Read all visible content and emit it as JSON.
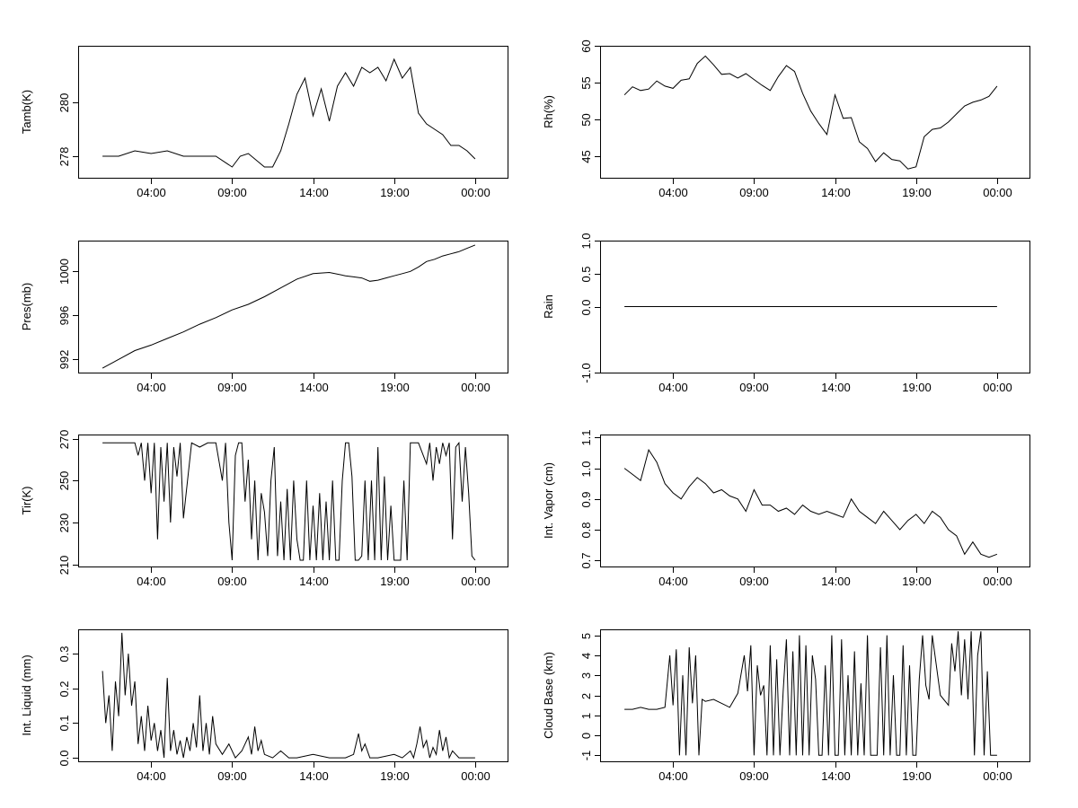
{
  "chart_data": [
    {
      "type": "line",
      "ylabel": "Tamb(K)",
      "xlim": [
        -1.5,
        25.0
      ],
      "ylim": [
        277.2,
        282.1
      ],
      "yticks": [
        278,
        280
      ],
      "xticks": [
        3,
        8,
        13,
        18,
        23
      ],
      "xtick_labels": [
        "04:00",
        "09:00",
        "14:00",
        "19:00",
        "00:00"
      ],
      "series": [
        {
          "x": [
            0,
            1,
            2,
            3,
            4,
            5,
            6,
            7,
            8,
            8.5,
            9,
            10,
            10.5,
            11,
            11.5,
            12,
            12.5,
            13,
            13.5,
            14,
            14.5,
            15,
            15.5,
            16,
            16.5,
            17,
            17.5,
            18,
            18.5,
            19,
            19.5,
            20,
            20.5,
            21,
            21.5,
            22,
            22.5,
            23
          ],
          "y": [
            278.0,
            278.0,
            278.2,
            278.1,
            278.2,
            278.0,
            278.0,
            278.0,
            277.6,
            278.0,
            278.1,
            277.6,
            277.6,
            278.2,
            279.2,
            280.3,
            280.9,
            279.5,
            280.5,
            279.3,
            280.6,
            281.1,
            280.6,
            281.3,
            281.1,
            281.3,
            280.8,
            281.6,
            280.9,
            281.3,
            279.6,
            279.2,
            279.0,
            278.8,
            278.4,
            278.4,
            278.2,
            277.9
          ]
        }
      ]
    },
    {
      "type": "line",
      "ylabel": "Rh(%)",
      "xlim": [
        -1.5,
        25.0
      ],
      "ylim": [
        42,
        60
      ],
      "yticks": [
        45,
        50,
        55,
        60
      ],
      "xticks": [
        3,
        8,
        13,
        18,
        23
      ],
      "xtick_labels": [
        "04:00",
        "09:00",
        "14:00",
        "19:00",
        "00:00"
      ],
      "series": [
        {
          "x": [
            0,
            0.5,
            1,
            1.5,
            2,
            2.5,
            3,
            3.5,
            4,
            4.5,
            5,
            5.5,
            6,
            6.5,
            7,
            7.5,
            8,
            8.5,
            9,
            9.5,
            10,
            10.5,
            11,
            11.5,
            12,
            12.5,
            13,
            13.5,
            14,
            14.5,
            15,
            15.5,
            16,
            16.5,
            17,
            17.5,
            18,
            18.5,
            19,
            19.5,
            20,
            20.5,
            21,
            21.5,
            22,
            22.5,
            23
          ],
          "y": [
            53.3,
            54.4,
            53.9,
            54.1,
            55.2,
            54.5,
            54.2,
            55.3,
            55.5,
            57.6,
            58.6,
            57.4,
            56.1,
            56.2,
            55.6,
            56.2,
            55.4,
            54.6,
            53.9,
            55.8,
            57.3,
            56.5,
            53.5,
            51.1,
            49.4,
            47.9,
            53.3,
            50.1,
            50.2,
            46.9,
            46.0,
            44.2,
            45.4,
            44.5,
            44.3,
            43.2,
            43.5,
            47.6,
            48.6,
            48.8,
            49.6,
            50.7,
            51.8,
            52.3,
            52.6,
            53.1,
            54.5
          ]
        }
      ]
    },
    {
      "type": "line",
      "ylabel": "Pres(mb)",
      "xlim": [
        -1.5,
        25.0
      ],
      "ylim": [
        990.8,
        1002.8
      ],
      "yticks": [
        992,
        996,
        1000
      ],
      "xticks": [
        3,
        8,
        13,
        18,
        23
      ],
      "xtick_labels": [
        "04:00",
        "09:00",
        "14:00",
        "19:00",
        "00:00"
      ],
      "series": [
        {
          "x": [
            0,
            1,
            2,
            3,
            4,
            5,
            6,
            7,
            8,
            9,
            10,
            11,
            12,
            13,
            14,
            15,
            15.5,
            16,
            16.5,
            17,
            17.5,
            18,
            18.5,
            19,
            19.5,
            20,
            20.5,
            21,
            21.5,
            22,
            22.5,
            23
          ],
          "y": [
            991.2,
            992.0,
            992.8,
            993.3,
            993.9,
            994.5,
            995.2,
            995.8,
            996.5,
            997.0,
            997.7,
            998.5,
            999.3,
            999.8,
            999.9,
            999.6,
            999.5,
            999.4,
            999.1,
            999.2,
            999.4,
            999.6,
            999.8,
            1000.0,
            1000.4,
            1000.9,
            1001.1,
            1001.4,
            1001.6,
            1001.8,
            1002.1,
            1002.4
          ]
        }
      ]
    },
    {
      "type": "line",
      "ylabel": "Rain",
      "xlim": [
        -1.5,
        25.0
      ],
      "ylim": [
        -1.0,
        1.0
      ],
      "yticks": [
        -1.0,
        0.0,
        0.5,
        1.0
      ],
      "ytick_labels": [
        "-1.0",
        "0.0",
        "0.5",
        "1.0"
      ],
      "xticks": [
        3,
        8,
        13,
        18,
        23
      ],
      "xtick_labels": [
        "04:00",
        "09:00",
        "14:00",
        "19:00",
        "00:00"
      ],
      "series": [
        {
          "x": [
            0,
            23
          ],
          "y": [
            0,
            0
          ]
        }
      ]
    },
    {
      "type": "line",
      "ylabel": "Tir(K)",
      "xlim": [
        -1.5,
        25.0
      ],
      "ylim": [
        209,
        272
      ],
      "yticks": [
        210,
        230,
        250,
        270
      ],
      "xticks": [
        3,
        8,
        13,
        18,
        23
      ],
      "xtick_labels": [
        "04:00",
        "09:00",
        "14:00",
        "19:00",
        "00:00"
      ],
      "series": [
        {
          "x": [
            0,
            1,
            2,
            2.2,
            2.4,
            2.6,
            2.8,
            3,
            3.2,
            3.4,
            3.6,
            3.8,
            4,
            4.2,
            4.4,
            4.6,
            4.8,
            5,
            5.5,
            6,
            6.5,
            7,
            7.4,
            7.6,
            7.8,
            8,
            8.2,
            8.4,
            8.6,
            8.8,
            9,
            9.2,
            9.4,
            9.6,
            9.8,
            10,
            10.2,
            10.4,
            10.6,
            10.8,
            11,
            11.2,
            11.4,
            11.6,
            11.8,
            12,
            12.2,
            12.4,
            12.6,
            12.8,
            13,
            13.2,
            13.4,
            13.6,
            13.8,
            14,
            14.2,
            14.4,
            14.6,
            14.8,
            15,
            15.2,
            15.4,
            15.6,
            15.8,
            16,
            16.2,
            16.4,
            16.6,
            16.8,
            17,
            17.2,
            17.4,
            17.6,
            17.8,
            18,
            18.2,
            18.4,
            18.6,
            18.8,
            19,
            19.5,
            20,
            20.2,
            20.4,
            20.6,
            20.8,
            21,
            21.2,
            21.4,
            21.6,
            21.8,
            22,
            22.2,
            22.4,
            22.6,
            22.8,
            23
          ],
          "y": [
            268,
            268,
            268,
            262,
            268,
            250,
            268,
            244,
            268,
            222,
            266,
            240,
            268,
            230,
            266,
            252,
            268,
            232,
            268,
            266,
            268,
            268,
            250,
            268,
            230,
            212,
            262,
            268,
            268,
            240,
            260,
            222,
            250,
            212,
            244,
            235,
            214,
            250,
            266,
            214,
            240,
            212,
            246,
            212,
            250,
            222,
            212,
            212,
            250,
            212,
            238,
            212,
            244,
            212,
            240,
            212,
            250,
            212,
            212,
            250,
            268,
            268,
            252,
            212,
            212,
            214,
            250,
            212,
            250,
            212,
            266,
            212,
            252,
            212,
            238,
            212,
            212,
            212,
            250,
            212,
            268,
            268,
            258,
            268,
            250,
            266,
            258,
            268,
            262,
            268,
            222,
            266,
            268,
            240,
            266,
            244,
            214,
            212
          ]
        }
      ]
    },
    {
      "type": "line",
      "ylabel": "Int. Vapor (cm)",
      "xlim": [
        -1.5,
        25.0
      ],
      "ylim": [
        0.68,
        1.11
      ],
      "yticks": [
        0.7,
        0.8,
        0.9,
        1.0,
        1.1
      ],
      "ytick_labels": [
        "0.7",
        "0.8",
        "0.9",
        "1.0",
        "1.1"
      ],
      "xticks": [
        3,
        8,
        13,
        18,
        23
      ],
      "xtick_labels": [
        "04:00",
        "09:00",
        "14:00",
        "19:00",
        "00:00"
      ],
      "series": [
        {
          "x": [
            0,
            0.5,
            1,
            1.5,
            2,
            2.5,
            3,
            3.5,
            4,
            4.5,
            5,
            5.5,
            6,
            6.5,
            7,
            7.5,
            8,
            8.5,
            9,
            9.5,
            10,
            10.5,
            11,
            11.5,
            12,
            12.5,
            13,
            13.5,
            14,
            14.5,
            15,
            15.5,
            16,
            16.5,
            17,
            17.5,
            18,
            18.5,
            19,
            19.5,
            20,
            20.5,
            21,
            21.5,
            22,
            22.5,
            23
          ],
          "y": [
            1.0,
            0.98,
            0.96,
            1.06,
            1.02,
            0.95,
            0.92,
            0.9,
            0.94,
            0.97,
            0.95,
            0.92,
            0.93,
            0.91,
            0.9,
            0.86,
            0.93,
            0.88,
            0.88,
            0.86,
            0.87,
            0.85,
            0.88,
            0.86,
            0.85,
            0.86,
            0.85,
            0.84,
            0.9,
            0.86,
            0.84,
            0.82,
            0.86,
            0.83,
            0.8,
            0.83,
            0.85,
            0.82,
            0.86,
            0.84,
            0.8,
            0.78,
            0.72,
            0.76,
            0.72,
            0.71,
            0.72
          ]
        }
      ]
    },
    {
      "type": "line",
      "ylabel": "Int. Liquid (mm)",
      "xlim": [
        -1.5,
        25.0
      ],
      "ylim": [
        -0.01,
        0.37
      ],
      "yticks": [
        0.0,
        0.1,
        0.2,
        0.3
      ],
      "ytick_labels": [
        "0.0",
        "0.1",
        "0.2",
        "0.3"
      ],
      "xticks": [
        3,
        8,
        13,
        18,
        23
      ],
      "xtick_labels": [
        "04:00",
        "09:00",
        "14:00",
        "19:00",
        "00:00"
      ],
      "series": [
        {
          "x": [
            0,
            0.2,
            0.4,
            0.6,
            0.8,
            1,
            1.2,
            1.4,
            1.6,
            1.8,
            2,
            2.2,
            2.4,
            2.6,
            2.8,
            3,
            3.2,
            3.4,
            3.6,
            3.8,
            4,
            4.2,
            4.4,
            4.6,
            4.8,
            5,
            5.2,
            5.4,
            5.6,
            5.8,
            6,
            6.2,
            6.4,
            6.6,
            6.8,
            7,
            7.4,
            7.8,
            8.2,
            8.6,
            9,
            9.2,
            9.4,
            9.6,
            9.8,
            10,
            10.5,
            11,
            11.5,
            12,
            13,
            14,
            15,
            15.5,
            15.8,
            16,
            16.2,
            16.5,
            17,
            18,
            18.5,
            19,
            19.2,
            19.4,
            19.6,
            19.8,
            20,
            20.2,
            20.4,
            20.6,
            20.8,
            21,
            21.2,
            21.4,
            21.6,
            22,
            22.5,
            23
          ],
          "y": [
            0.25,
            0.1,
            0.18,
            0.02,
            0.22,
            0.12,
            0.36,
            0.18,
            0.3,
            0.15,
            0.22,
            0.04,
            0.12,
            0.02,
            0.15,
            0.05,
            0.1,
            0.02,
            0.08,
            0.0,
            0.23,
            0.02,
            0.08,
            0.01,
            0.05,
            0.0,
            0.06,
            0.02,
            0.1,
            0.03,
            0.18,
            0.02,
            0.1,
            0.01,
            0.12,
            0.04,
            0.01,
            0.04,
            0.0,
            0.02,
            0.06,
            0.01,
            0.09,
            0.02,
            0.05,
            0.01,
            0.0,
            0.02,
            0.0,
            0.0,
            0.01,
            0.0,
            0.0,
            0.01,
            0.07,
            0.02,
            0.04,
            0.0,
            0.0,
            0.01,
            0.0,
            0.02,
            0.0,
            0.04,
            0.09,
            0.03,
            0.05,
            0.0,
            0.03,
            0.01,
            0.08,
            0.02,
            0.06,
            0.0,
            0.02,
            0.0,
            0.0,
            0.0
          ]
        }
      ]
    },
    {
      "type": "line",
      "ylabel": "Cloud Base (km)",
      "xlim": [
        -1.5,
        25.0
      ],
      "ylim": [
        -1.3,
        5.3
      ],
      "yticks": [
        -1,
        0,
        1,
        2,
        3,
        4,
        5
      ],
      "xticks": [
        3,
        8,
        13,
        18,
        23
      ],
      "xtick_labels": [
        "04:00",
        "09:00",
        "14:00",
        "19:00",
        "00:00"
      ],
      "series": [
        {
          "x": [
            0,
            0.5,
            1,
            1.5,
            2,
            2.5,
            2.8,
            3,
            3.2,
            3.4,
            3.6,
            3.8,
            4,
            4.2,
            4.4,
            4.6,
            4.8,
            5,
            5.5,
            6,
            6.5,
            7,
            7.4,
            7.6,
            7.8,
            8,
            8.2,
            8.4,
            8.6,
            8.8,
            9,
            9.2,
            9.4,
            9.6,
            9.8,
            10,
            10.2,
            10.4,
            10.6,
            10.8,
            11,
            11.2,
            11.4,
            11.6,
            11.8,
            12,
            12.2,
            12.4,
            12.6,
            12.8,
            13,
            13.2,
            13.4,
            13.6,
            13.8,
            14,
            14.2,
            14.4,
            14.6,
            14.8,
            15,
            15.2,
            15.4,
            15.6,
            15.8,
            16,
            16.2,
            16.4,
            16.6,
            16.8,
            17,
            17.2,
            17.4,
            17.6,
            17.8,
            18,
            18.2,
            18.4,
            18.6,
            18.8,
            19,
            19.5,
            20,
            20.2,
            20.4,
            20.6,
            20.8,
            21,
            21.2,
            21.4,
            21.6,
            21.8,
            22,
            22.2,
            22.4,
            22.6,
            22.8,
            23
          ],
          "y": [
            1.3,
            1.3,
            1.4,
            1.3,
            1.3,
            1.4,
            4.0,
            1.5,
            4.3,
            -1.0,
            3.0,
            -1.0,
            4.4,
            1.6,
            4.0,
            -1.0,
            1.8,
            1.7,
            1.8,
            1.6,
            1.4,
            2.1,
            4.0,
            2.2,
            4.5,
            -1.0,
            3.5,
            2.0,
            2.5,
            -1.0,
            4.5,
            -1.0,
            3.8,
            -1.0,
            2.2,
            4.8,
            -1.0,
            4.2,
            -1.0,
            5.0,
            -1.0,
            4.5,
            -1.0,
            4.0,
            2.8,
            -1.0,
            -1.0,
            3.5,
            -1.0,
            5.0,
            -1.0,
            -1.0,
            4.8,
            -1.0,
            3.0,
            -1.0,
            4.2,
            -1.0,
            2.6,
            -1.0,
            5.0,
            -1.0,
            -1.0,
            -1.0,
            4.4,
            -1.0,
            5.0,
            -1.0,
            3.0,
            -1.0,
            -1.0,
            4.5,
            -1.0,
            3.5,
            -1.0,
            -1.0,
            2.8,
            5.0,
            2.5,
            1.8,
            5.0,
            2.0,
            1.5,
            4.6,
            3.2,
            5.2,
            2.0,
            4.8,
            1.8,
            5.2,
            -1.0,
            4.0,
            5.2,
            -1.0,
            3.2,
            -1.0,
            -1.0,
            -1.0
          ]
        }
      ]
    }
  ]
}
